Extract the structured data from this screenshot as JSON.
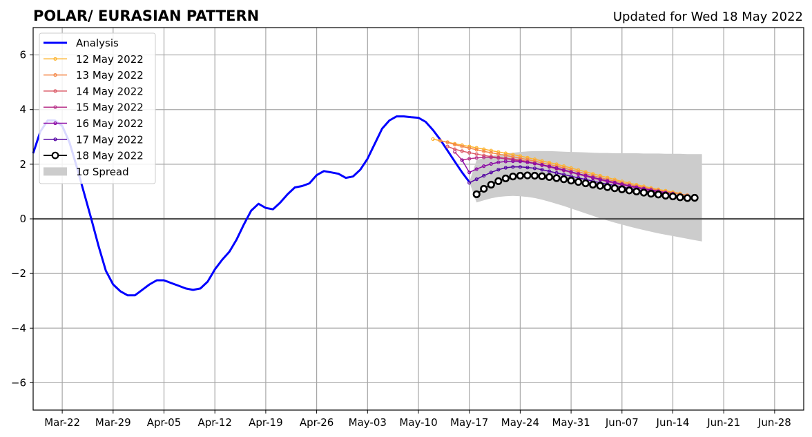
{
  "chart_data": {
    "type": "line",
    "title": "POLAR/ EURASIAN  PATTERN",
    "subtitle": "Updated for Wed 18 May 2022",
    "xlabel": "",
    "ylabel": "",
    "ylim": [
      -7,
      7
    ],
    "xlim": [
      "2022-03-18",
      "2022-07-02"
    ],
    "x_ticks": [
      "2022-03-22",
      "2022-03-29",
      "2022-04-05",
      "2022-04-12",
      "2022-04-19",
      "2022-04-26",
      "2022-05-03",
      "2022-05-10",
      "2022-05-17",
      "2022-05-24",
      "2022-05-31",
      "2022-06-07",
      "2022-06-14",
      "2022-06-21",
      "2022-06-28"
    ],
    "x_tick_labels": [
      "Mar-22",
      "Mar-29",
      "Apr-05",
      "Apr-12",
      "Apr-19",
      "Apr-26",
      "May-03",
      "May-10",
      "May-17",
      "May-24",
      "May-31",
      "Jun-07",
      "Jun-14",
      "Jun-21",
      "Jun-28"
    ],
    "y_ticks": [
      -6,
      -4,
      -2,
      0,
      2,
      4,
      6
    ],
    "y_tick_labels": [
      "−6",
      "−4",
      "−2",
      "0",
      "2",
      "4",
      "6"
    ],
    "grid": true,
    "legend_position": "top-left",
    "series": [
      {
        "name": "Analysis",
        "color": "#0000ff",
        "style": "analysis",
        "start": "2022-03-18",
        "values": [
          2.4,
          3.2,
          3.6,
          3.6,
          3.4,
          2.8,
          1.9,
          0.95,
          0.0,
          -1.0,
          -1.9,
          -2.4,
          -2.65,
          -2.8,
          -2.8,
          -2.6,
          -2.4,
          -2.25,
          -2.25,
          -2.35,
          -2.45,
          -2.55,
          -2.6,
          -2.55,
          -2.3,
          -1.85,
          -1.5,
          -1.2,
          -0.75,
          -0.2,
          0.3,
          0.55,
          0.4,
          0.35,
          0.6,
          0.9,
          1.15,
          1.2,
          1.3,
          1.6,
          1.75,
          1.7,
          1.65,
          1.5,
          1.55,
          1.8,
          2.2,
          2.75,
          3.3,
          3.6,
          3.75,
          3.75,
          3.72,
          3.7,
          3.55,
          3.25,
          2.9,
          2.5,
          2.1,
          1.7,
          1.35
        ]
      },
      {
        "name": "12 May 2022",
        "color": "#fdb42f",
        "style": "forecast",
        "start": "2022-05-12",
        "values": [
          2.92,
          2.86,
          2.81,
          2.75,
          2.7,
          2.65,
          2.6,
          2.55,
          2.5,
          2.45,
          2.4,
          2.35,
          2.3,
          2.24,
          2.18,
          2.12,
          2.06,
          2.0,
          1.93,
          1.86,
          1.79,
          1.72,
          1.65,
          1.58,
          1.51,
          1.44,
          1.37,
          1.31,
          1.25,
          1.19,
          1.13,
          1.08,
          1.03,
          0.98,
          0.93
        ]
      },
      {
        "name": "13 May 2022",
        "color": "#f48849",
        "style": "forecast",
        "start": "2022-05-13",
        "values": [
          2.86,
          2.8,
          2.72,
          2.65,
          2.59,
          2.53,
          2.47,
          2.42,
          2.37,
          2.32,
          2.27,
          2.22,
          2.17,
          2.11,
          2.05,
          1.99,
          1.93,
          1.86,
          1.79,
          1.72,
          1.65,
          1.58,
          1.51,
          1.44,
          1.38,
          1.32,
          1.26,
          1.2,
          1.15,
          1.1,
          1.05,
          1.0,
          0.95,
          0.91,
          0.87
        ]
      },
      {
        "name": "14 May 2022",
        "color": "#db5c68",
        "style": "forecast",
        "start": "2022-05-14",
        "values": [
          2.65,
          2.55,
          2.48,
          2.42,
          2.37,
          2.32,
          2.28,
          2.25,
          2.22,
          2.19,
          2.15,
          2.1,
          2.04,
          1.98,
          1.92,
          1.85,
          1.78,
          1.71,
          1.64,
          1.57,
          1.5,
          1.43,
          1.37,
          1.31,
          1.25,
          1.19,
          1.14,
          1.09,
          1.04,
          0.99,
          0.94
        ]
      },
      {
        "name": "15 May 2022",
        "color": "#b83289",
        "style": "forecast",
        "start": "2022-05-15",
        "values": [
          2.45,
          2.15,
          2.2,
          2.23,
          2.25,
          2.25,
          2.23,
          2.2,
          2.16,
          2.12,
          2.07,
          2.02,
          1.96,
          1.9,
          1.83,
          1.77,
          1.7,
          1.63,
          1.56,
          1.49,
          1.43,
          1.36,
          1.3,
          1.24,
          1.19,
          1.13,
          1.08,
          1.03,
          0.98,
          0.93
        ]
      },
      {
        "name": "16 May 2022",
        "color": "#8b0aa5",
        "style": "forecast",
        "start": "2022-05-16",
        "values": [
          2.15,
          1.7,
          1.82,
          1.93,
          2.01,
          2.07,
          2.1,
          2.11,
          2.1,
          2.07,
          2.03,
          1.98,
          1.92,
          1.86,
          1.79,
          1.72,
          1.65,
          1.59,
          1.52,
          1.45,
          1.39,
          1.33,
          1.27,
          1.21,
          1.16,
          1.11,
          1.06,
          1.01,
          0.96,
          0.92
        ]
      },
      {
        "name": "17 May 2022",
        "color": "#5302a3",
        "style": "forecast",
        "start": "2022-05-17",
        "values": [
          1.32,
          1.45,
          1.58,
          1.7,
          1.8,
          1.87,
          1.9,
          1.9,
          1.88,
          1.85,
          1.8,
          1.74,
          1.68,
          1.62,
          1.56,
          1.5,
          1.44,
          1.38,
          1.32,
          1.27,
          1.22,
          1.17,
          1.12,
          1.07,
          1.03,
          0.98,
          0.94,
          0.9,
          0.86
        ]
      },
      {
        "name": "18 May 2022",
        "color": "#000000",
        "style": "current",
        "start": "2022-05-18",
        "values": [
          0.9,
          1.1,
          1.25,
          1.38,
          1.48,
          1.55,
          1.58,
          1.59,
          1.58,
          1.56,
          1.53,
          1.49,
          1.45,
          1.4,
          1.35,
          1.3,
          1.25,
          1.21,
          1.16,
          1.12,
          1.08,
          1.04,
          1.0,
          0.96,
          0.92,
          0.89,
          0.85,
          0.82,
          0.79,
          0.76,
          0.77
        ]
      }
    ],
    "spread": {
      "name": "1σ Spread",
      "color": "#cccccc",
      "start": "2022-05-17",
      "upper": [
        1.35,
        2.15,
        2.23,
        2.3,
        2.35,
        2.39,
        2.42,
        2.45,
        2.47,
        2.48,
        2.48,
        2.48,
        2.47,
        2.46,
        2.45,
        2.44,
        2.43,
        2.42,
        2.41,
        2.41,
        2.4,
        2.4,
        2.4,
        2.4,
        2.39,
        2.39,
        2.39,
        2.38,
        2.38,
        2.38,
        2.37,
        2.37,
        2.37
      ],
      "lower": [
        1.35,
        0.6,
        0.68,
        0.75,
        0.8,
        0.83,
        0.84,
        0.83,
        0.8,
        0.76,
        0.7,
        0.63,
        0.55,
        0.47,
        0.38,
        0.29,
        0.2,
        0.11,
        0.02,
        -0.06,
        -0.14,
        -0.21,
        -0.28,
        -0.35,
        -0.41,
        -0.47,
        -0.53,
        -0.58,
        -0.63,
        -0.68,
        -0.73,
        -0.78,
        -0.83
      ]
    }
  }
}
